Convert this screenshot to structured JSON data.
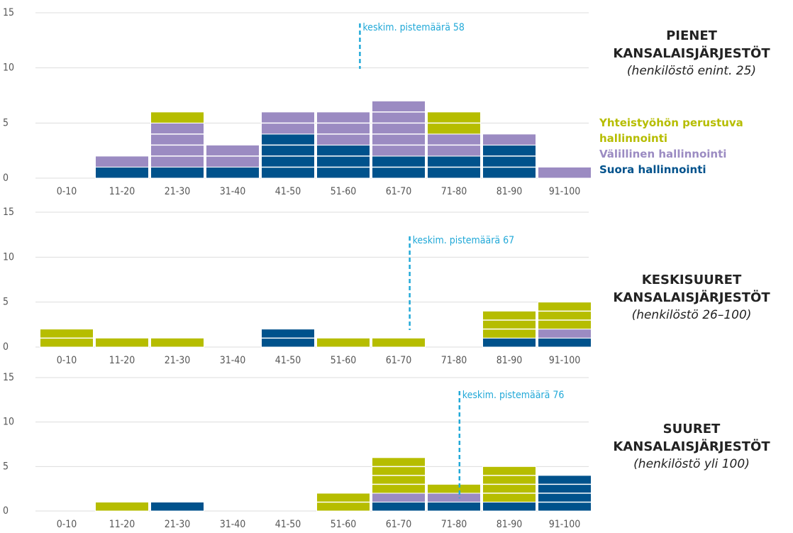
{
  "chart_data": [
    {
      "type": "bar",
      "stacked": true,
      "title": "PIENET KANSALAISJÄRJESTÖT",
      "subtitle": "(henkilöstö enint. 25)",
      "categories": [
        "0-10",
        "11-20",
        "21-30",
        "31-40",
        "41-50",
        "51-60",
        "61-70",
        "71-80",
        "81-90",
        "91-100"
      ],
      "series": [
        {
          "name": "Suora hallinnointi",
          "color": "#00528c",
          "values": [
            0,
            1,
            1,
            1,
            4,
            3,
            2,
            2,
            3,
            0
          ]
        },
        {
          "name": "Välillinen hallinnointi",
          "color": "#9b8bc2",
          "values": [
            0,
            1,
            4,
            2,
            2,
            3,
            5,
            2,
            1,
            1
          ]
        },
        {
          "name": "Yhteistyöhön perustuva hallinnointi",
          "color": "#b6bd00",
          "values": [
            0,
            0,
            1,
            0,
            0,
            0,
            0,
            2,
            0,
            0
          ]
        }
      ],
      "legend": true,
      "ylim": [
        0,
        15
      ],
      "yticks": [
        0,
        5,
        10,
        15
      ],
      "grid": true,
      "annotation": "keskim. pistemäärä 58",
      "mean": 58,
      "annotation_color": "#22a9d8"
    },
    {
      "type": "bar",
      "stacked": true,
      "title": "KESKISUURET KANSALAISJÄRJESTÖT",
      "subtitle": "(henkilöstö 26–100)",
      "categories": [
        "0-10",
        "11-20",
        "21-30",
        "31-40",
        "41-50",
        "51-60",
        "61-70",
        "71-80",
        "81-90",
        "91-100"
      ],
      "series": [
        {
          "color": "#00528c",
          "values": [
            0,
            0,
            0,
            0,
            2,
            0,
            0,
            0,
            1,
            1
          ]
        },
        {
          "color": "#9b8bc2",
          "values": [
            0,
            0,
            0,
            0,
            0,
            0,
            0,
            0,
            0,
            1
          ]
        },
        {
          "color": "#b6bd00",
          "values": [
            2,
            1,
            1,
            0,
            0,
            1,
            1,
            0,
            3,
            3
          ]
        }
      ],
      "ylim": [
        0,
        15
      ],
      "yticks": [
        0,
        5,
        10,
        15
      ],
      "grid": true,
      "annotation": "keskim. pistemäärä 67",
      "mean": 67,
      "annotation_color": "#22a9d8"
    },
    {
      "type": "bar",
      "stacked": true,
      "title": "SUURET KANSALAISJÄRJESTÖT",
      "subtitle": "(henkilöstö yli 100)",
      "categories": [
        "0-10",
        "11-20",
        "21-30",
        "31-40",
        "41-50",
        "51-60",
        "61-70",
        "71-80",
        "81-90",
        "91-100"
      ],
      "series": [
        {
          "color": "#00528c",
          "values": [
            0,
            0,
            1,
            0,
            0,
            0,
            1,
            1,
            1,
            4
          ]
        },
        {
          "color": "#9b8bc2",
          "values": [
            0,
            0,
            0,
            0,
            0,
            0,
            1,
            1,
            0,
            0
          ]
        },
        {
          "color": "#b6bd00",
          "values": [
            0,
            1,
            0,
            0,
            0,
            2,
            4,
            1,
            4,
            0
          ]
        }
      ],
      "ylim": [
        0,
        15
      ],
      "yticks": [
        0,
        5,
        10,
        15
      ],
      "grid": true,
      "annotation": "keskim. pistemäärä 76",
      "mean": 76,
      "annotation_color": "#22a9d8"
    }
  ]
}
